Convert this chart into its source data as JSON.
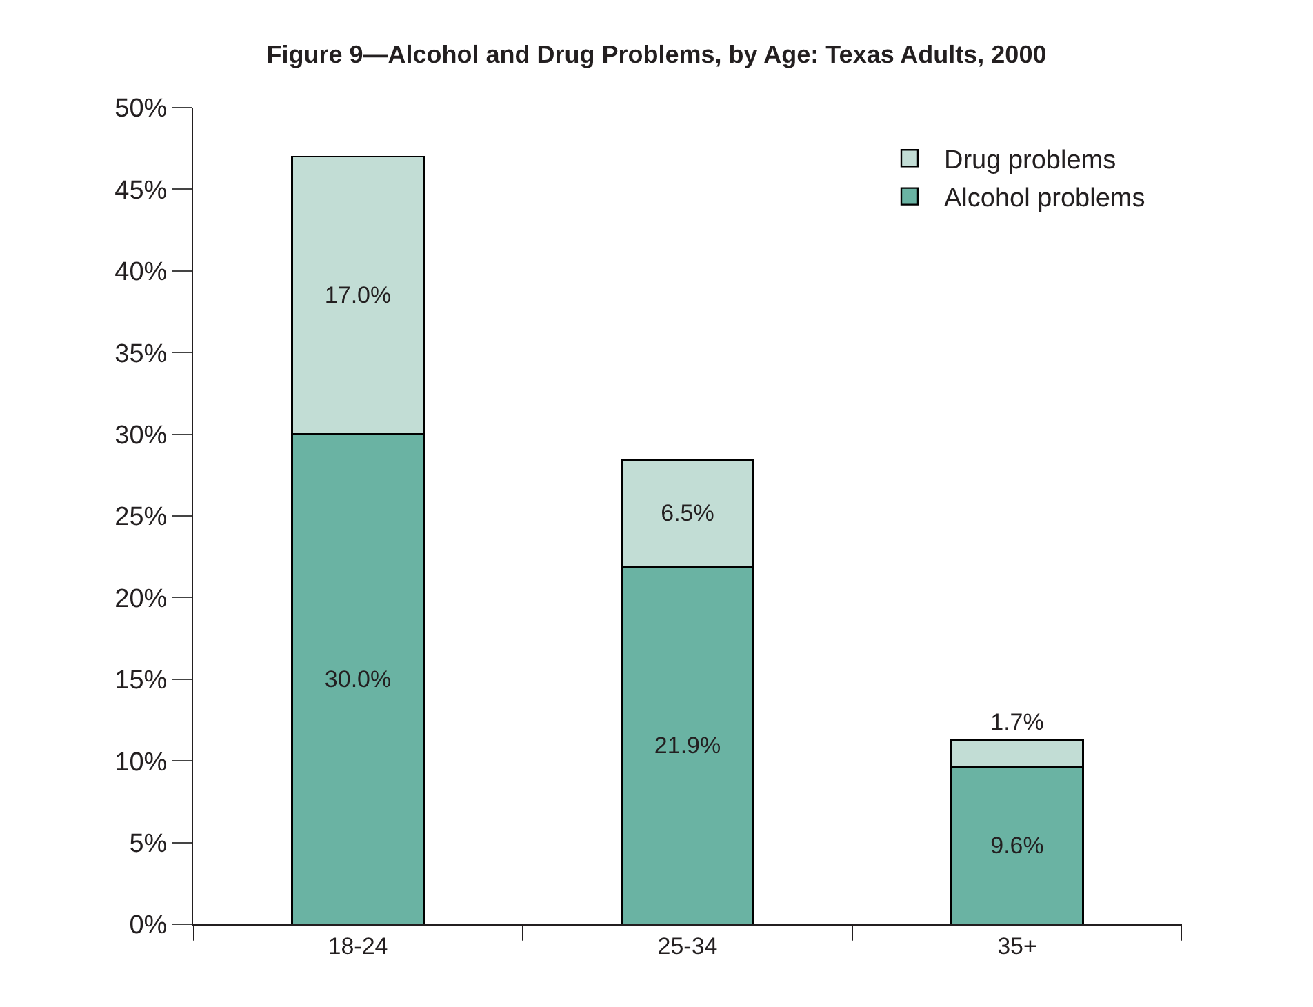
{
  "chart_data": {
    "type": "bar",
    "stacked": true,
    "title": "Figure 9—Alcohol and Drug Problems, by Age: Texas Adults, 2000",
    "categories": [
      "18-24",
      "25-34",
      "35+"
    ],
    "series": [
      {
        "name": "Alcohol problems",
        "color": "#6ab3a3",
        "values": [
          30.0,
          21.9,
          9.6
        ],
        "value_labels": [
          "30.0%",
          "21.9%",
          "9.6%"
        ]
      },
      {
        "name": "Drug problems",
        "color": "#c2ddd5",
        "values": [
          17.0,
          6.5,
          1.7
        ],
        "value_labels": [
          "17.0%",
          "6.5%",
          "1.7%"
        ]
      }
    ],
    "ylim": [
      0,
      50
    ],
    "yticks": [
      {
        "value": 0,
        "label": "0%"
      },
      {
        "value": 5,
        "label": "5%"
      },
      {
        "value": 10,
        "label": "10%"
      },
      {
        "value": 15,
        "label": "15%"
      },
      {
        "value": 20,
        "label": "20%"
      },
      {
        "value": 25,
        "label": "25%"
      },
      {
        "value": 30,
        "label": "30%"
      },
      {
        "value": 35,
        "label": "35%"
      },
      {
        "value": 40,
        "label": "40%"
      },
      {
        "value": 45,
        "label": "45%"
      },
      {
        "value": 50,
        "label": "50%"
      }
    ],
    "legend": "top right"
  }
}
